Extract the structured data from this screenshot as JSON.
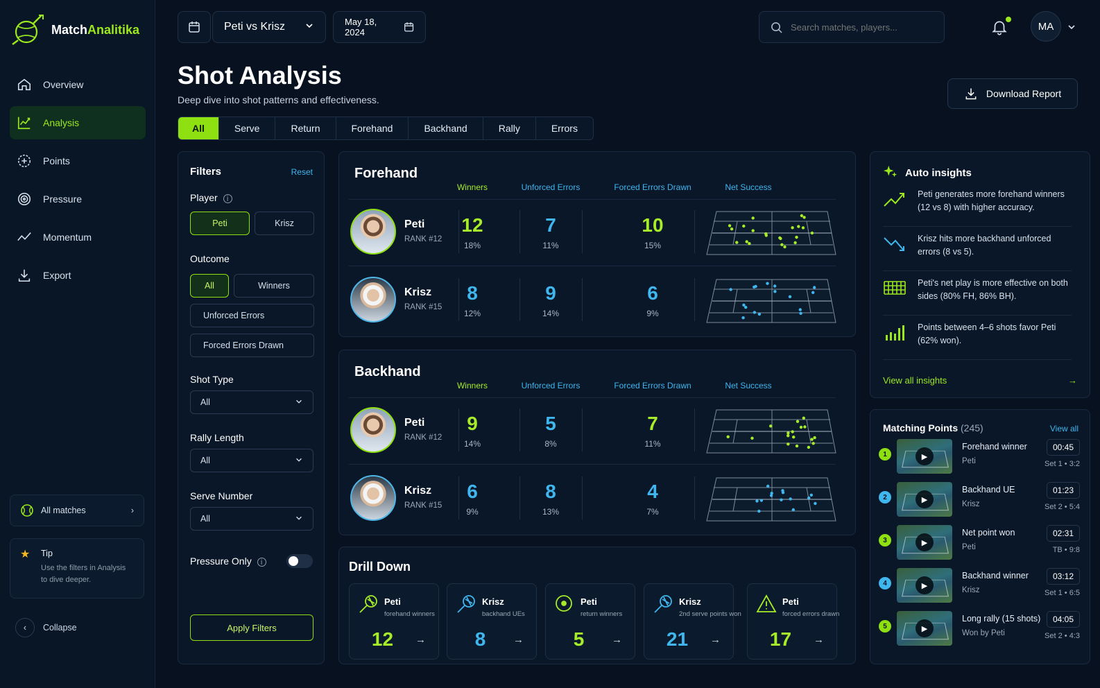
{
  "app": {
    "name_part1": "Match",
    "name_part2": "Analitika"
  },
  "nav": [
    {
      "label": "Overview",
      "icon": "home-icon"
    },
    {
      "label": "Analysis",
      "icon": "analysis-icon",
      "active": true
    },
    {
      "label": "Points",
      "icon": "points-icon"
    },
    {
      "label": "Pressure",
      "icon": "target-icon"
    },
    {
      "label": "Momentum",
      "icon": "momentum-icon"
    },
    {
      "label": "Export",
      "icon": "download-icon"
    }
  ],
  "sidebar": {
    "all_matches": "All matches",
    "tip_title": "Tip",
    "tip_text": "Use the filters in Analysis to dive deeper.",
    "collapse": "Collapse"
  },
  "topbar": {
    "match": "Peti vs Krisz",
    "date": "May 18, 2024",
    "search_placeholder": "Search matches, players...",
    "user_initials": "MA"
  },
  "page": {
    "title": "Shot Analysis",
    "subtitle": "Deep dive into shot patterns and effectiveness.",
    "download": "Download Report"
  },
  "tabs": [
    "All",
    "Serve",
    "Return",
    "Forehand",
    "Backhand",
    "Rally",
    "Errors"
  ],
  "filters": {
    "title": "Filters",
    "reset": "Reset",
    "player_label": "Player",
    "players": [
      "Peti",
      "Krisz"
    ],
    "outcome_label": "Outcome",
    "outcomes": [
      "All",
      "Winners",
      "Unforced Errors",
      "Forced Errors Drawn"
    ],
    "shot_type_label": "Shot Type",
    "shot_type": "All",
    "rally_label": "Rally Length",
    "rally": "All",
    "serve_label": "Serve Number",
    "serve": "All",
    "pressure_label": "Pressure Only",
    "pressure_on": false,
    "apply": "Apply Filters"
  },
  "columns": [
    "Winners",
    "Unforced Errors",
    "Forced Errors Drawn",
    "Net Success"
  ],
  "forehand": {
    "title": "Forehand",
    "rows": [
      {
        "name": "Peti",
        "rank": "RANK #12",
        "winners": "12",
        "winners_pct": "18%",
        "ue": "7",
        "ue_pct": "11%",
        "fed": "10",
        "fed_pct": "15%"
      },
      {
        "name": "Krisz",
        "rank": "RANK #15",
        "winners": "8",
        "winners_pct": "12%",
        "ue": "9",
        "ue_pct": "14%",
        "fed": "6",
        "fed_pct": "9%"
      }
    ]
  },
  "backhand": {
    "title": "Backhand",
    "rows": [
      {
        "name": "Peti",
        "rank": "RANK #12",
        "winners": "9",
        "winners_pct": "14%",
        "ue": "5",
        "ue_pct": "8%",
        "fed": "7",
        "fed_pct": "11%"
      },
      {
        "name": "Krisz",
        "rank": "RANK #15",
        "winners": "6",
        "winners_pct": "9%",
        "ue": "8",
        "ue_pct": "13%",
        "fed": "4",
        "fed_pct": "7%"
      }
    ]
  },
  "drill": {
    "title": "Drill Down",
    "cards": [
      {
        "name": "Peti",
        "sub": "forehand winners",
        "value": "12",
        "icon": "racket-icon",
        "color": "#a6ec2a"
      },
      {
        "name": "Krisz",
        "sub": "backhand UEs",
        "value": "8",
        "icon": "racket-icon",
        "color": "#3fb6ee"
      },
      {
        "name": "Peti",
        "sub": "return winners",
        "value": "5",
        "icon": "ball-icon",
        "color": "#a6ec2a"
      },
      {
        "name": "Krisz",
        "sub": "2nd serve points won",
        "value": "21",
        "icon": "racket-icon",
        "color": "#3fb6ee"
      },
      {
        "name": "Peti",
        "sub": "forced errors drawn",
        "value": "17",
        "icon": "warning-icon",
        "color": "#a6ec2a"
      }
    ]
  },
  "insights": {
    "title": "Auto insights",
    "items": [
      {
        "text": "Peti generates more forehand winners (12 vs 8) with higher accuracy.",
        "icon": "trend-up-icon"
      },
      {
        "text": "Krisz hits more backhand unforced errors (8 vs 5).",
        "icon": "trend-down-icon"
      },
      {
        "text": "Peti's net play is more effective on both sides (80% FH, 86% BH).",
        "icon": "net-icon"
      },
      {
        "text": "Points between 4–6 shots favor Peti (62% won).",
        "icon": "bars-icon"
      }
    ],
    "view_all": "View all insights"
  },
  "matching": {
    "title": "Matching Points",
    "count": "(245)",
    "view_all": "View all",
    "items": [
      {
        "n": "1",
        "title": "Forehand winner",
        "player": "Peti",
        "time": "00:45",
        "score": "Set 1  •  3:2",
        "color": "#8ee010"
      },
      {
        "n": "2",
        "title": "Backhand UE",
        "player": "Krisz",
        "time": "01:23",
        "score": "Set 2  •  5:4",
        "color": "#3fb6ee"
      },
      {
        "n": "3",
        "title": "Net point won",
        "player": "Peti",
        "time": "02:31",
        "score": "TB  •  9:8",
        "color": "#8ee010"
      },
      {
        "n": "4",
        "title": "Backhand winner",
        "player": "Krisz",
        "time": "03:12",
        "score": "Set 1  •  6:5",
        "color": "#3fb6ee"
      },
      {
        "n": "5",
        "title": "Long rally (15 shots)",
        "player": "Won by Peti",
        "time": "04:05",
        "score": "Set 2  •  4:3",
        "color": "#8ee010"
      }
    ]
  }
}
